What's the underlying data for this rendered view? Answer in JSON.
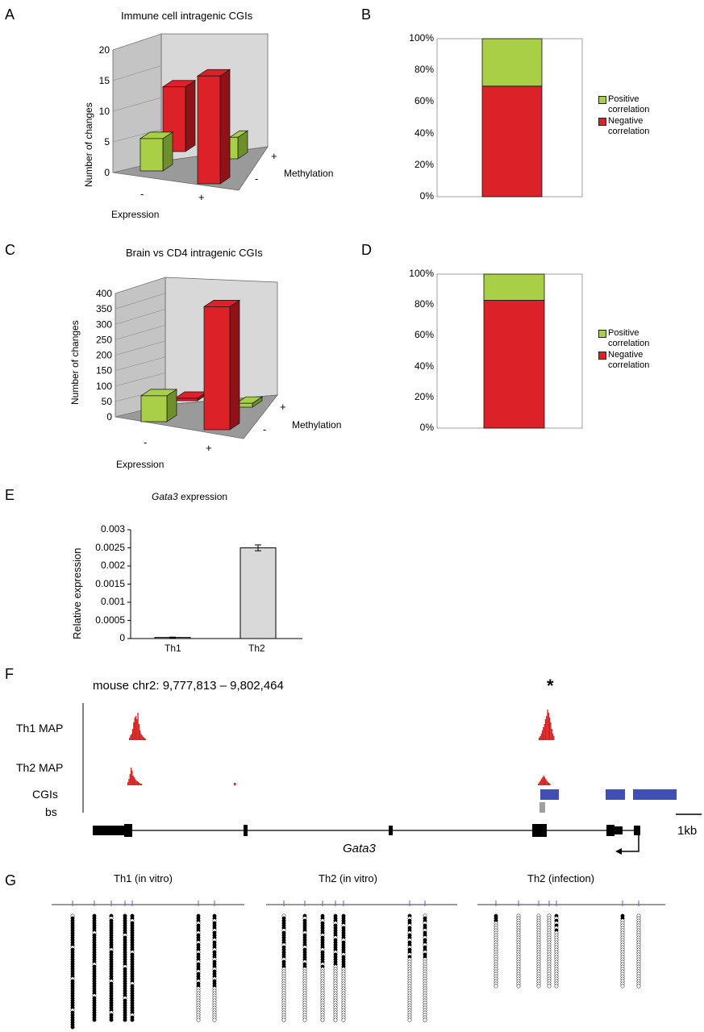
{
  "panels": {
    "A": "A",
    "B": "B",
    "C": "C",
    "D": "D",
    "E": "E",
    "F": "F",
    "G": "G"
  },
  "colors": {
    "green": "#a8cf45",
    "green_side": "#6f8f2a",
    "red": "#dc2128",
    "red_side": "#8e1216",
    "grey_bar": "#d9d9d9",
    "blue_cgi": "#3f4fb4",
    "track_red": "#d0201e",
    "grey_bs": "#a0a0a0"
  },
  "chart_data": [
    {
      "type": "bar",
      "title": "Immune cell intragenic CGIs",
      "ylabel": "Number of changes",
      "xlabel": "Expression",
      "zlabel": "Methylation",
      "x_categories": [
        "-",
        "+"
      ],
      "z_categories": [
        "-",
        "+"
      ],
      "yticks": [
        "0",
        "5",
        "10",
        "15",
        "20"
      ],
      "ylim": [
        0,
        20
      ],
      "series": [
        {
          "methylation": "-",
          "expression": "-",
          "value": 6
        },
        {
          "methylation": "+",
          "expression": "-",
          "value": 12
        },
        {
          "methylation": "-",
          "expression": "+",
          "value": 20
        },
        {
          "methylation": "+",
          "expression": "+",
          "value": 4
        }
      ]
    },
    {
      "type": "bar",
      "stacked": true,
      "yticks": [
        "0%",
        "20%",
        "40%",
        "60%",
        "80%",
        "100%"
      ],
      "series": [
        {
          "name": "Negative correlation",
          "values": [
            70
          ]
        },
        {
          "name": "Positive correlation",
          "values": [
            30
          ]
        }
      ],
      "legend": [
        "Positive correlation",
        "Negative correlation"
      ]
    },
    {
      "type": "bar",
      "title": "Brain vs CD4 intragenic CGIs",
      "ylabel": "Number of changes",
      "xlabel": "Expression",
      "zlabel": "Methylation",
      "x_categories": [
        "-",
        "+"
      ],
      "z_categories": [
        "-",
        "+"
      ],
      "yticks": [
        "0",
        "50",
        "100",
        "150",
        "200",
        "250",
        "300",
        "350",
        "400"
      ],
      "ylim": [
        0,
        400
      ],
      "series": [
        {
          "methylation": "-",
          "expression": "-",
          "value": 80
        },
        {
          "methylation": "+",
          "expression": "-",
          "value": 5
        },
        {
          "methylation": "-",
          "expression": "+",
          "value": 380
        },
        {
          "methylation": "+",
          "expression": "+",
          "value": 12
        }
      ]
    },
    {
      "type": "bar",
      "stacked": true,
      "yticks": [
        "0%",
        "20%",
        "40%",
        "60%",
        "80%",
        "100%"
      ],
      "series": [
        {
          "name": "Negative correlation",
          "values": [
            83
          ]
        },
        {
          "name": "Positive correlation",
          "values": [
            17
          ]
        }
      ],
      "legend": [
        "Positive correlation",
        "Negative correlation"
      ]
    },
    {
      "type": "bar",
      "title_italic": "Gata3",
      "title_rest": " expression",
      "ylabel": "Relative expression",
      "categories": [
        "Th1",
        "Th2"
      ],
      "values": [
        3e-05,
        0.0025
      ],
      "errors": [
        1e-05,
        8e-05
      ],
      "yticks": [
        "0",
        "0.0005",
        "0.001",
        "0.0015",
        "0.002",
        "0.0025",
        "0.003"
      ],
      "ylim": [
        0,
        0.003
      ]
    }
  ],
  "legend_labels": {
    "positive_1": "Positive",
    "positive_2": "correlation",
    "negative_1": "Negative",
    "negative_2": "correlation"
  },
  "panel_f": {
    "coords": "mouse chr2: 9,777,813 – 9,802,464",
    "asterisk": "*",
    "tracks": [
      "Th1 MAP",
      "Th2 MAP",
      "CGIs",
      "bs"
    ],
    "gene": "Gata3",
    "scale": "1kb"
  },
  "panel_g": {
    "titles": [
      "Th1 (in vitro)",
      "Th2 (in vitro)",
      "Th2 (infection)"
    ]
  }
}
